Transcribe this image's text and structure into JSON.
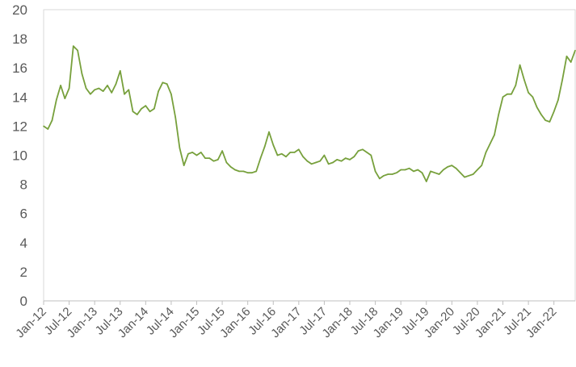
{
  "chart_data": {
    "type": "line",
    "title": "",
    "xlabel": "",
    "ylabel": "",
    "ylim": [
      0,
      20
    ],
    "yticks": [
      0,
      2,
      4,
      6,
      8,
      10,
      12,
      14,
      16,
      18,
      20
    ],
    "xlim": [
      "2012-01",
      "2022-06"
    ],
    "grid": false,
    "legend": "none",
    "series_color": "#77a03c",
    "x_tick_labels": [
      "Jan-12",
      "Jul-12",
      "Jan-13",
      "Jul-13",
      "Jan-14",
      "Jul-14",
      "Jan-15",
      "Jul-15",
      "Jan-16",
      "Jul-16",
      "Jan-17",
      "Jul-17",
      "Jan-18",
      "Jul-18",
      "Jan-19",
      "Jul-19",
      "Jan-20",
      "Jul-20",
      "Jan-21",
      "Jul-21",
      "Jan-22"
    ],
    "series": [
      {
        "x": [
          "2012-01",
          "2012-02",
          "2012-03",
          "2012-04",
          "2012-05",
          "2012-06",
          "2012-07",
          "2012-08",
          "2012-09",
          "2012-10",
          "2012-11",
          "2012-12",
          "2013-01",
          "2013-02",
          "2013-03",
          "2013-04",
          "2013-05",
          "2013-06",
          "2013-07",
          "2013-08",
          "2013-09",
          "2013-10",
          "2013-11",
          "2013-12",
          "2014-01",
          "2014-02",
          "2014-03",
          "2014-04",
          "2014-05",
          "2014-06",
          "2014-07",
          "2014-08",
          "2014-09",
          "2014-10",
          "2014-11",
          "2014-12",
          "2015-01",
          "2015-02",
          "2015-03",
          "2015-04",
          "2015-05",
          "2015-06",
          "2015-07",
          "2015-08",
          "2015-09",
          "2015-10",
          "2015-11",
          "2015-12",
          "2016-01",
          "2016-02",
          "2016-03",
          "2016-04",
          "2016-05",
          "2016-06",
          "2016-07",
          "2016-08",
          "2016-09",
          "2016-10",
          "2016-11",
          "2016-12",
          "2017-01",
          "2017-02",
          "2017-03",
          "2017-04",
          "2017-05",
          "2017-06",
          "2017-07",
          "2017-08",
          "2017-09",
          "2017-10",
          "2017-11",
          "2017-12",
          "2018-01",
          "2018-02",
          "2018-03",
          "2018-04",
          "2018-05",
          "2018-06",
          "2018-07",
          "2018-08",
          "2018-09",
          "2018-10",
          "2018-11",
          "2018-12",
          "2019-01",
          "2019-02",
          "2019-03",
          "2019-04",
          "2019-05",
          "2019-06",
          "2019-07",
          "2019-08",
          "2019-09",
          "2019-10",
          "2019-11",
          "2019-12",
          "2020-01",
          "2020-02",
          "2020-03",
          "2020-04",
          "2020-05",
          "2020-06",
          "2020-07",
          "2020-08",
          "2020-09",
          "2020-10",
          "2020-11",
          "2020-12",
          "2021-01",
          "2021-02",
          "2021-03",
          "2021-04",
          "2021-05",
          "2021-06",
          "2021-07",
          "2021-08",
          "2021-09",
          "2021-10",
          "2021-11",
          "2021-12",
          "2022-01",
          "2022-02",
          "2022-03",
          "2022-04",
          "2022-05",
          "2022-06"
        ],
        "values": [
          12.0,
          11.8,
          12.4,
          13.8,
          14.8,
          13.9,
          14.6,
          17.5,
          17.2,
          15.6,
          14.6,
          14.2,
          14.5,
          14.6,
          14.4,
          14.8,
          14.3,
          14.9,
          15.8,
          14.2,
          14.5,
          13.0,
          12.8,
          13.2,
          13.4,
          13.0,
          13.2,
          14.4,
          15.0,
          14.9,
          14.2,
          12.6,
          10.5,
          9.3,
          10.1,
          10.2,
          10.0,
          10.2,
          9.8,
          9.8,
          9.6,
          9.7,
          10.3,
          9.5,
          9.2,
          9.0,
          8.9,
          8.9,
          8.8,
          8.8,
          8.9,
          9.8,
          10.6,
          11.6,
          10.7,
          10.0,
          10.1,
          9.9,
          10.2,
          10.2,
          10.4,
          9.9,
          9.6,
          9.4,
          9.5,
          9.6,
          10.0,
          9.4,
          9.5,
          9.7,
          9.6,
          9.8,
          9.7,
          9.9,
          10.3,
          10.4,
          10.2,
          10.0,
          8.9,
          8.4,
          8.6,
          8.7,
          8.7,
          8.8,
          9.0,
          9.0,
          9.1,
          8.9,
          9.0,
          8.8,
          8.2,
          8.9,
          8.8,
          8.7,
          9.0,
          9.2,
          9.3,
          9.1,
          8.8,
          8.5,
          8.6,
          8.7,
          9.0,
          9.3,
          10.2,
          10.8,
          11.4,
          12.8,
          14.0,
          14.2,
          14.2,
          14.8,
          16.2,
          15.2,
          14.3,
          14.0,
          13.3,
          12.8,
          12.4,
          12.3,
          13.0,
          13.8,
          15.2,
          16.8,
          16.4,
          17.2
        ]
      }
    ]
  }
}
